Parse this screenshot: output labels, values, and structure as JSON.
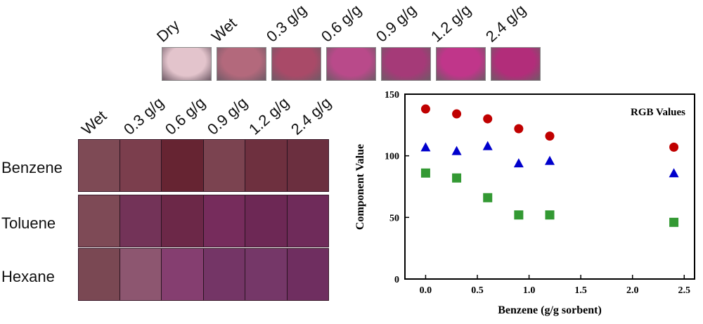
{
  "top_strip": {
    "labels": [
      "Dry",
      "Wet",
      "0.3 g/g",
      "0.6 g/g",
      "0.9 g/g",
      "1.2 g/g",
      "2.4 g/g"
    ],
    "colors": [
      "#e3c4cc",
      "#b3697c",
      "#a94a68",
      "#b94a8a",
      "#a53a78",
      "#c0368a",
      "#b22d7a"
    ]
  },
  "grid": {
    "columns": [
      "Wet",
      "0.3 g/g",
      "0.6 g/g",
      "0.9 g/g",
      "1.2 g/g",
      "2.4 g/g"
    ],
    "rows": [
      {
        "label": "Benzene",
        "colors": [
          "#7e4a55",
          "#7b3e4d",
          "#662432",
          "#7b4350",
          "#6e303f",
          "#6b2f3f"
        ]
      },
      {
        "label": "Toluene",
        "colors": [
          "#7e4a56",
          "#733358",
          "#6c2848",
          "#762c5c",
          "#6d2855",
          "#6f2b5a"
        ]
      },
      {
        "label": "Hexane",
        "colors": [
          "#7a4853",
          "#8d5670",
          "#853e70",
          "#743566",
          "#753768",
          "#6f2e60"
        ]
      }
    ]
  },
  "chart_data": {
    "type": "scatter",
    "title": "RGB Values",
    "xlabel": "Benzene (g/g sorbent)",
    "ylabel": "Component Value",
    "xlim": [
      -0.2,
      2.6
    ],
    "ylim": [
      0,
      150
    ],
    "xticks": [
      0.0,
      0.5,
      1.0,
      1.5,
      2.0,
      2.5
    ],
    "xtick_labels": [
      "0.0",
      "0.5",
      "1.0",
      "1.5",
      "2.0",
      "2.5"
    ],
    "yticks": [
      0,
      50,
      100,
      150
    ],
    "ytick_labels": [
      "0",
      "50",
      "100",
      "150"
    ],
    "series": [
      {
        "name": "Red",
        "marker": "circle",
        "color": "#c00000",
        "x": [
          0.0,
          0.3,
          0.6,
          0.9,
          1.2,
          2.4
        ],
        "y": [
          138,
          134,
          130,
          122,
          116,
          107
        ]
      },
      {
        "name": "Blue",
        "marker": "triangle",
        "color": "#0000cc",
        "x": [
          0.0,
          0.3,
          0.6,
          0.9,
          1.2,
          2.4
        ],
        "y": [
          107,
          104,
          108,
          94,
          96,
          86
        ]
      },
      {
        "name": "Green",
        "marker": "square",
        "color": "#339933",
        "x": [
          0.0,
          0.3,
          0.6,
          0.9,
          1.2,
          2.4
        ],
        "y": [
          86,
          82,
          66,
          52,
          52,
          46
        ]
      }
    ]
  }
}
